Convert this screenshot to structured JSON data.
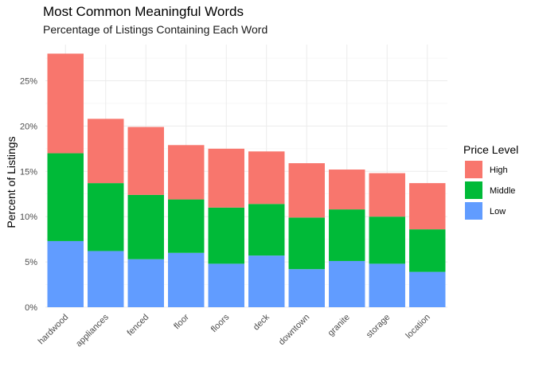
{
  "chart_data": {
    "type": "bar",
    "stacked": true,
    "title": "Most Common Meaningful Words",
    "subtitle": "Percentage of Listings Containing Each Word",
    "xlabel": "",
    "ylabel": "Percent of Listings",
    "ylim": [
      0,
      0.29
    ],
    "yticks": [
      0,
      0.05,
      0.1,
      0.15,
      0.2,
      0.25
    ],
    "ytick_labels": [
      "0%",
      "5%",
      "10%",
      "15%",
      "20%",
      "25%"
    ],
    "grid": true,
    "legend": {
      "title": "Price Level",
      "position": "right"
    },
    "categories": [
      "hardwood",
      "appliances",
      "fenced",
      "floor",
      "floors",
      "deck",
      "downtown",
      "granite",
      "storage",
      "location"
    ],
    "series": [
      {
        "name": "Low",
        "color": "#619CFF",
        "values": [
          0.073,
          0.062,
          0.053,
          0.06,
          0.048,
          0.057,
          0.042,
          0.051,
          0.048,
          0.039
        ]
      },
      {
        "name": "Middle",
        "color": "#00BA38",
        "values": [
          0.097,
          0.075,
          0.071,
          0.059,
          0.062,
          0.057,
          0.057,
          0.057,
          0.052,
          0.047
        ]
      },
      {
        "name": "High",
        "color": "#F8766D",
        "values": [
          0.11,
          0.071,
          0.075,
          0.06,
          0.065,
          0.058,
          0.06,
          0.044,
          0.048,
          0.051
        ]
      }
    ]
  }
}
